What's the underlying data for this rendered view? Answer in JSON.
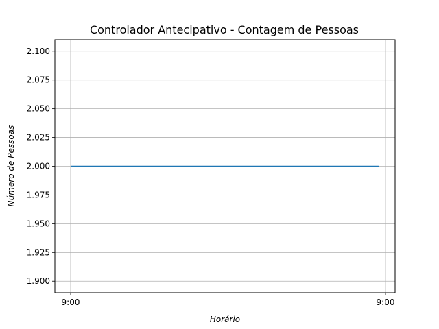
{
  "chart_data": {
    "type": "line",
    "title": "Controlador Antecipativo - Contagem de Pessoas",
    "xlabel": "Horário",
    "ylabel": "Número de Pessoas",
    "x": [
      "9:00",
      "9:00"
    ],
    "series": [
      {
        "values": [
          2.0,
          2.0
        ],
        "color": "#1f77b4"
      }
    ],
    "x_ticks": [
      "9:00",
      "9:00"
    ],
    "y_ticks": [
      1.9,
      1.925,
      1.95,
      1.975,
      2.0,
      2.025,
      2.05,
      2.075,
      2.1
    ],
    "y_tick_labels": [
      "1.900",
      "1.925",
      "1.950",
      "1.975",
      "2.000",
      "2.025",
      "2.050",
      "2.075",
      "2.100"
    ],
    "ylim": [
      1.89,
      2.11
    ],
    "grid": true,
    "legend": false
  }
}
